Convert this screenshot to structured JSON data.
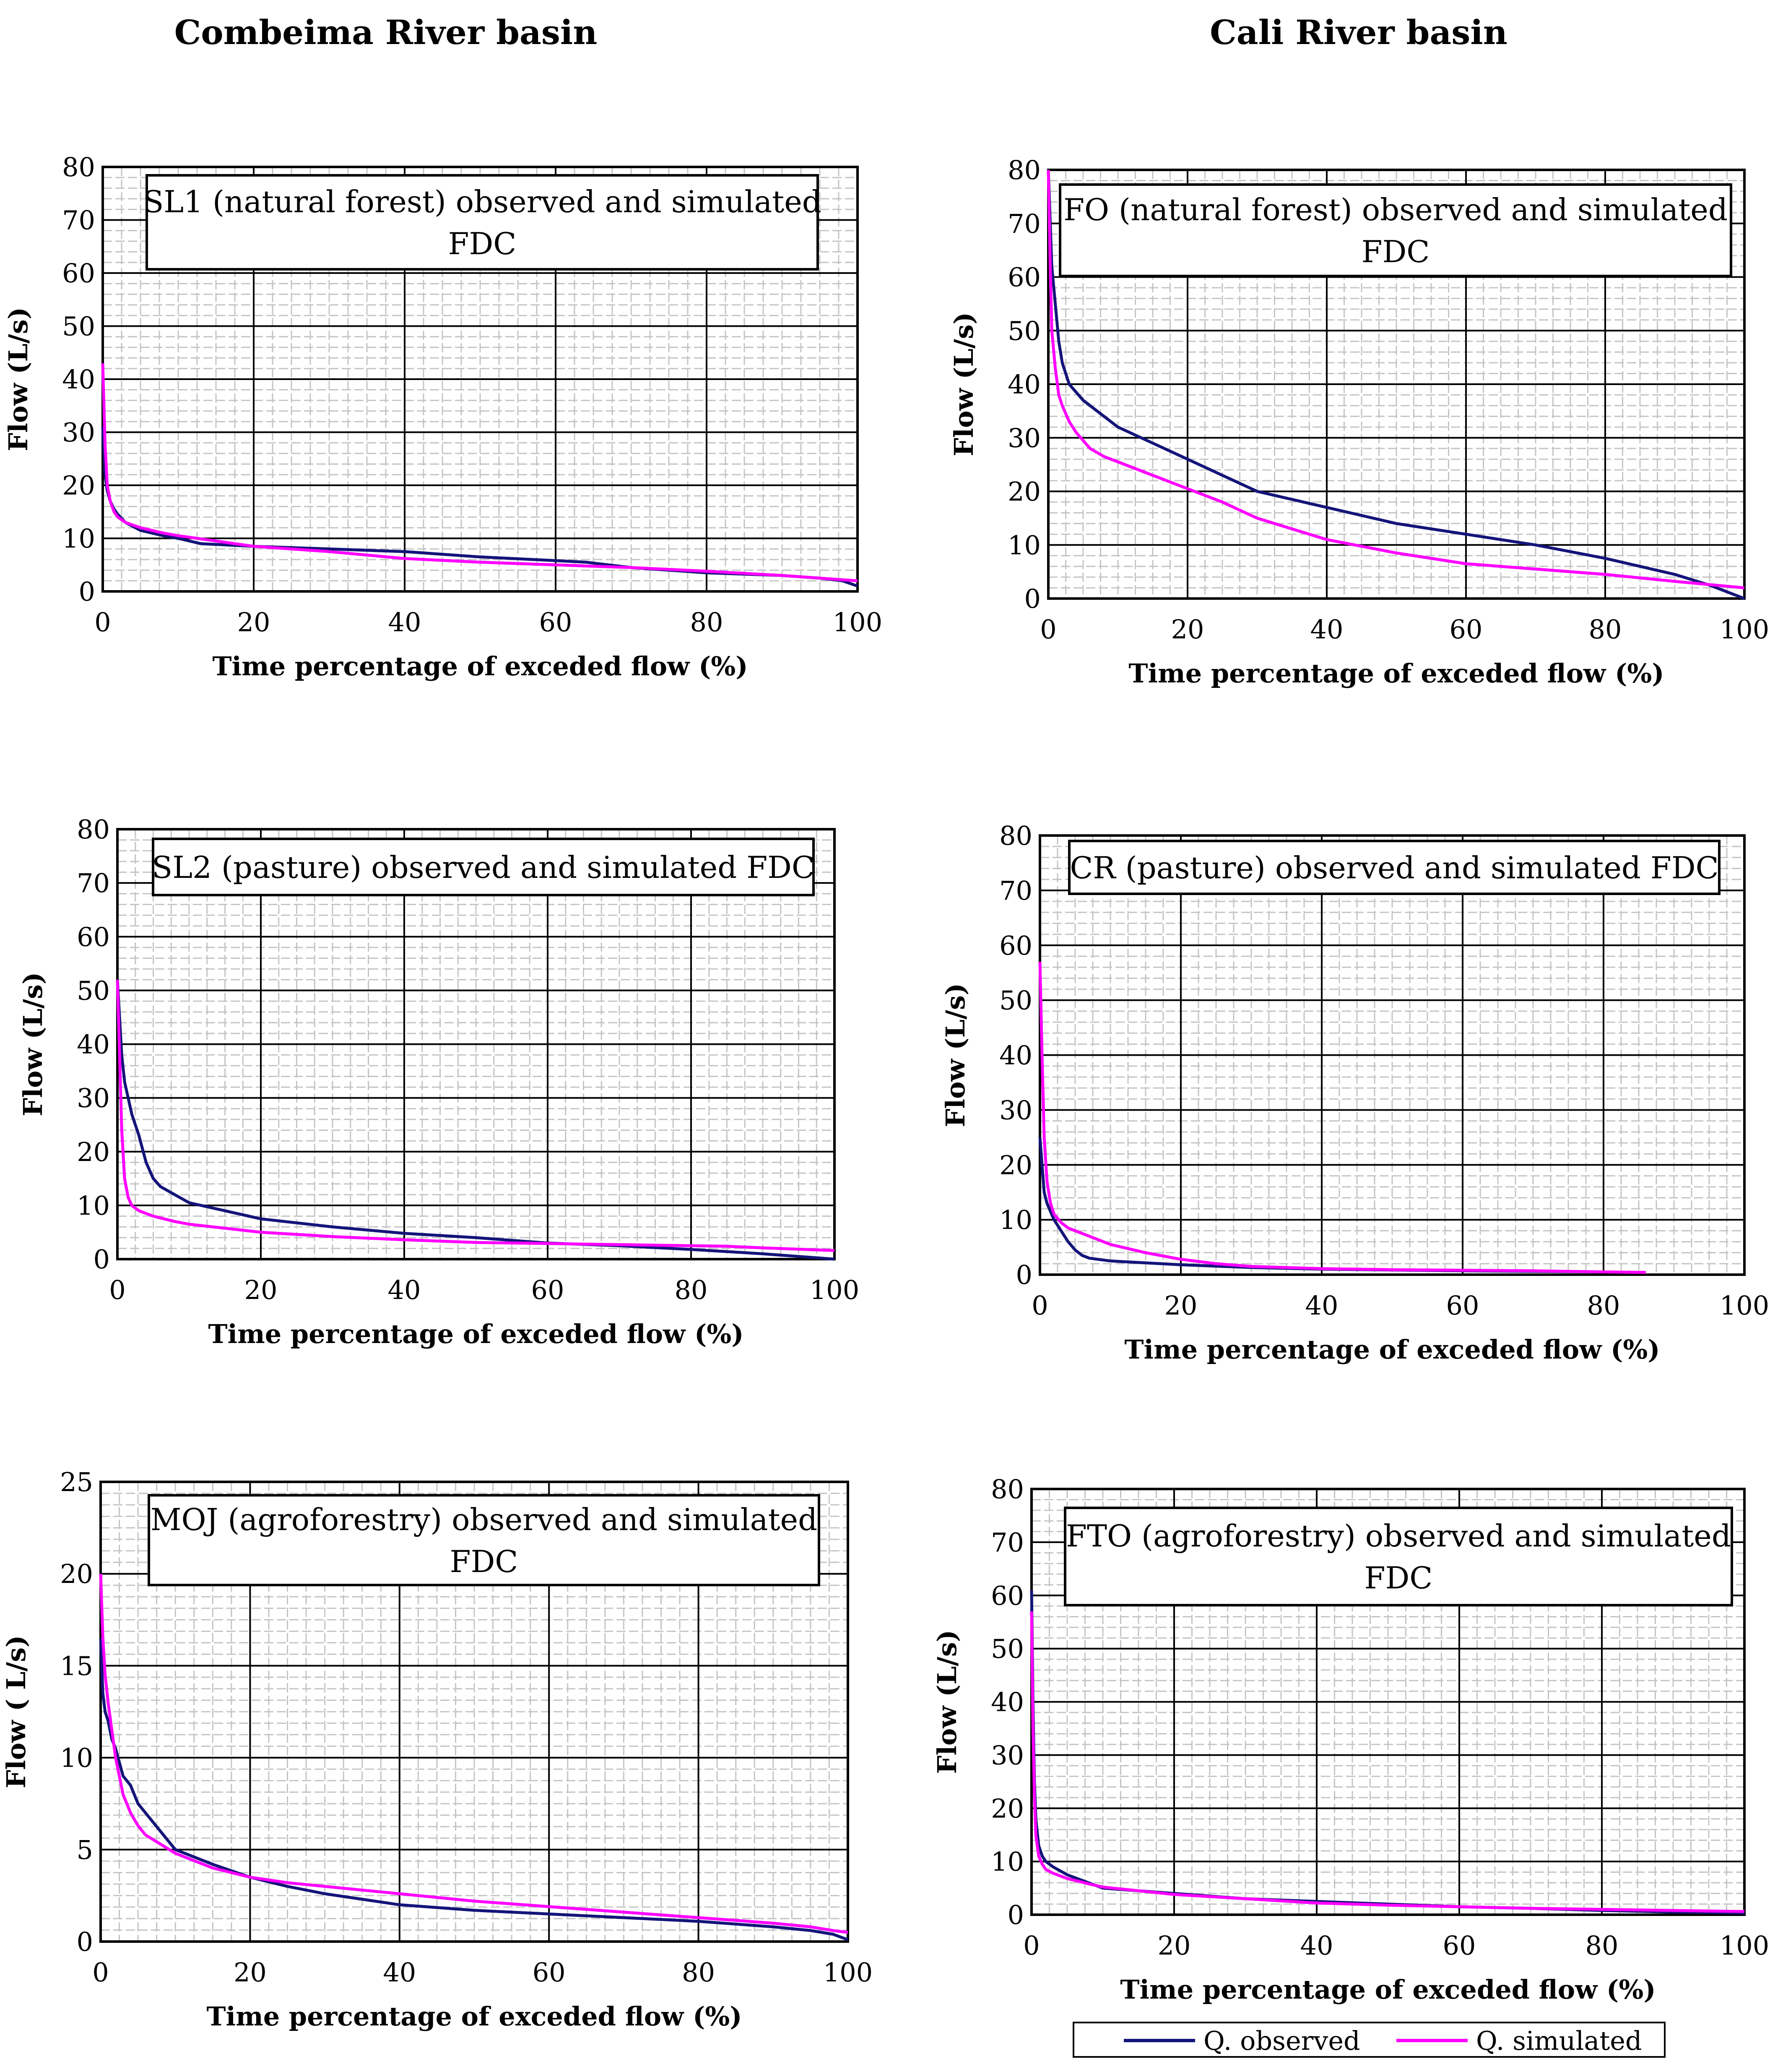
{
  "column_titles": [
    "Combeima River basin",
    "Cali River basin"
  ],
  "legend": {
    "observed": "Q. observed",
    "simulated": "Q. simulated"
  },
  "colors": {
    "observed": "#14147a",
    "simulated": "#ff00ff",
    "major_grid": "#000000",
    "minor_grid": "#c4c4c4"
  },
  "chart_data": [
    {
      "type": "line",
      "title": "SL1 (natural forest) observed and simulated FDC",
      "xlabel": "Time percentage of exceded flow (%)",
      "ylabel": "Flow (L/s)",
      "xlim": [
        0,
        100
      ],
      "ylim": [
        0,
        80
      ],
      "xticks": [
        0,
        20,
        40,
        60,
        80,
        100
      ],
      "yticks": [
        0,
        10,
        20,
        30,
        40,
        50,
        60,
        70,
        80
      ],
      "series": [
        {
          "name": "Q. observed",
          "x": [
            0,
            0.3,
            0.6,
            1,
            1.5,
            2,
            3,
            5,
            8,
            10,
            13,
            20,
            30,
            40,
            50,
            60,
            64,
            70,
            80,
            90,
            95,
            98,
            100
          ],
          "y": [
            31,
            22,
            19,
            17,
            15.5,
            14.5,
            13,
            11.5,
            10.5,
            10,
            9,
            8.5,
            8,
            7.5,
            6.5,
            5.8,
            5.5,
            4.5,
            3.5,
            3,
            2.5,
            2,
            1
          ]
        },
        {
          "name": "Q. simulated",
          "x": [
            0,
            0.3,
            0.6,
            1,
            1.5,
            2,
            3,
            5,
            8,
            10,
            15,
            20,
            30,
            40,
            50,
            60,
            70,
            80,
            90,
            95,
            100
          ],
          "y": [
            43,
            28,
            20,
            17,
            15,
            14,
            13,
            12,
            11,
            10.5,
            9.5,
            8.5,
            7.5,
            6.2,
            5.5,
            5,
            4.5,
            3.8,
            3,
            2.5,
            2
          ]
        }
      ]
    },
    {
      "type": "line",
      "title": "FO (natural forest) observed and simulated FDC",
      "xlabel": "Time percentage of exceded flow (%)",
      "ylabel": "Flow (L/s)",
      "xlim": [
        0,
        100
      ],
      "ylim": [
        0,
        80
      ],
      "xticks": [
        0,
        20,
        40,
        60,
        80,
        100
      ],
      "yticks": [
        0,
        10,
        20,
        30,
        40,
        50,
        60,
        70,
        80
      ],
      "series": [
        {
          "name": "Q. observed",
          "x": [
            0,
            0.5,
            1,
            1.5,
            2,
            3,
            5,
            8,
            10,
            15,
            20,
            25,
            30,
            40,
            50,
            60,
            70,
            80,
            90,
            95,
            100
          ],
          "y": [
            80,
            62,
            55,
            48,
            44,
            40,
            37,
            34,
            32,
            29,
            26,
            23,
            20,
            17,
            14,
            12,
            10,
            7.5,
            4.5,
            2.5,
            0
          ]
        },
        {
          "name": "Q. simulated",
          "x": [
            0,
            0.3,
            0.5,
            1,
            1.5,
            2,
            3,
            4,
            6,
            8,
            10,
            15,
            20,
            25,
            30,
            40,
            50,
            60,
            70,
            80,
            90,
            100
          ],
          "y": [
            80,
            60,
            50,
            43,
            38,
            36,
            33,
            31,
            28,
            26.5,
            25.5,
            23,
            20.5,
            18,
            15,
            11,
            8.5,
            6.5,
            5.5,
            4.5,
            3.2,
            2
          ]
        }
      ]
    },
    {
      "type": "line",
      "title": "SL2 (pasture) observed and simulated FDC",
      "xlabel": "Time percentage of exceded flow (%)",
      "ylabel": "Flow (L/s)",
      "xlim": [
        0,
        100
      ],
      "ylim": [
        0,
        80
      ],
      "xticks": [
        0,
        20,
        40,
        60,
        80,
        100
      ],
      "yticks": [
        0,
        10,
        20,
        30,
        40,
        50,
        60,
        70,
        80
      ],
      "series": [
        {
          "name": "Q. observed",
          "x": [
            0,
            0.3,
            0.6,
            1,
            2,
            3,
            4,
            5,
            6,
            8,
            10,
            15,
            20,
            30,
            40,
            50,
            60,
            70,
            80,
            90,
            95,
            100
          ],
          "y": [
            52,
            45,
            38,
            33,
            27,
            23,
            18,
            15,
            13.5,
            12,
            10.5,
            9,
            7.5,
            6,
            4.8,
            4,
            3,
            2.5,
            1.8,
            1,
            0.5,
            0
          ]
        },
        {
          "name": "Q. simulated",
          "x": [
            0,
            0.3,
            0.6,
            1,
            1.5,
            2,
            3,
            5,
            8,
            10,
            20,
            30,
            40,
            50,
            60,
            70,
            80,
            85,
            90,
            100
          ],
          "y": [
            52,
            38,
            24,
            15,
            11.5,
            10,
            9,
            8,
            7,
            6.5,
            5,
            4.2,
            3.6,
            3.1,
            2.9,
            2.7,
            2.5,
            2.4,
            2.1,
            1.6
          ]
        }
      ]
    },
    {
      "type": "line",
      "title": "CR (pasture) observed and simulated FDC",
      "xlabel": "Time percentage of exceded flow (%)",
      "ylabel": "Flow (L/s)",
      "xlim": [
        0,
        100
      ],
      "ylim": [
        0,
        80
      ],
      "xticks": [
        0,
        20,
        40,
        60,
        80,
        100
      ],
      "yticks": [
        0,
        10,
        20,
        30,
        40,
        50,
        60,
        70,
        80
      ],
      "series": [
        {
          "name": "Q. observed",
          "x": [
            0,
            0.3,
            0.6,
            1,
            2,
            3,
            4,
            5,
            6,
            7,
            10,
            20,
            30,
            40,
            60,
            80,
            86
          ],
          "y": [
            25,
            20,
            15,
            13,
            10,
            8,
            6,
            4.5,
            3.5,
            3,
            2.5,
            1.8,
            1.3,
            1,
            0.7,
            0.5,
            0.4
          ]
        },
        {
          "name": "Q. simulated",
          "x": [
            0,
            0.3,
            0.6,
            1,
            1.5,
            2,
            3,
            4,
            6,
            8,
            10,
            15,
            20,
            25,
            30,
            40,
            50,
            60,
            70,
            80,
            86
          ],
          "y": [
            57,
            40,
            25,
            17,
            13,
            11,
            9.5,
            8.5,
            7.5,
            6.5,
            5.5,
            4,
            2.8,
            2,
            1.5,
            1.1,
            0.9,
            0.8,
            0.7,
            0.5,
            0.4
          ]
        }
      ]
    },
    {
      "type": "line",
      "title": "MOJ (agroforestry) observed and simulated FDC",
      "xlabel": "Time percentage of exceded flow (%)",
      "ylabel": "Flow ( L/s)",
      "xlim": [
        0,
        100
      ],
      "ylim": [
        0,
        25
      ],
      "xticks": [
        0,
        20,
        40,
        60,
        80,
        100
      ],
      "yticks": [
        0,
        5,
        10,
        15,
        20,
        25
      ],
      "series": [
        {
          "name": "Q. observed",
          "x": [
            0,
            0.3,
            0.6,
            1,
            1.5,
            2,
            3,
            4,
            5,
            6,
            8,
            10,
            15,
            20,
            25,
            30,
            40,
            50,
            60,
            70,
            80,
            90,
            95,
            98,
            100
          ],
          "y": [
            16.5,
            13.5,
            12.5,
            12,
            11,
            10.5,
            9,
            8.5,
            7.5,
            7,
            6,
            5,
            4.2,
            3.5,
            3,
            2.6,
            2,
            1.7,
            1.5,
            1.3,
            1.1,
            0.8,
            0.6,
            0.4,
            0.1
          ]
        },
        {
          "name": "Q. simulated",
          "x": [
            0,
            0.3,
            0.6,
            1,
            1.5,
            2,
            3,
            4,
            5,
            6,
            8,
            10,
            15,
            20,
            25,
            30,
            40,
            50,
            60,
            70,
            80,
            90,
            95,
            98,
            100
          ],
          "y": [
            20,
            16.5,
            14.5,
            13,
            11.5,
            10,
            8,
            7,
            6.3,
            5.8,
            5.3,
            4.8,
            4,
            3.5,
            3.2,
            3,
            2.6,
            2.2,
            1.9,
            1.6,
            1.3,
            1,
            0.8,
            0.6,
            0.5
          ]
        }
      ]
    },
    {
      "type": "line",
      "title": "FTO (agroforestry) observed and simulated FDC",
      "xlabel": "Time percentage of exceded flow (%)",
      "ylabel": "Flow (L/s)",
      "xlim": [
        0,
        100
      ],
      "ylim": [
        0,
        80
      ],
      "xticks": [
        0,
        20,
        40,
        60,
        80,
        100
      ],
      "yticks": [
        0,
        10,
        20,
        30,
        40,
        50,
        60,
        70,
        80
      ],
      "series": [
        {
          "name": "Q. observed",
          "x": [
            0,
            0.2,
            0.4,
            0.6,
            1,
            1.5,
            2,
            3,
            5,
            8,
            10,
            20,
            30,
            40,
            50,
            60,
            70,
            80,
            90,
            100
          ],
          "y": [
            61,
            40,
            25,
            18,
            13,
            11,
            10,
            9,
            7.5,
            6,
            5,
            4,
            3,
            2.5,
            2,
            1.5,
            1.2,
            0.8,
            0.5,
            0.3
          ]
        },
        {
          "name": "Q. simulated",
          "x": [
            0,
            0.2,
            0.4,
            0.6,
            1,
            1.5,
            2,
            3,
            5,
            8,
            10,
            20,
            30,
            40,
            50,
            60,
            70,
            80,
            90,
            100
          ],
          "y": [
            57,
            35,
            22,
            15,
            11,
            9.5,
            8.5,
            7.8,
            6.8,
            5.8,
            5.2,
            3.8,
            3,
            2.2,
            1.8,
            1.5,
            1.2,
            1,
            0.8,
            0.6
          ]
        }
      ]
    }
  ]
}
